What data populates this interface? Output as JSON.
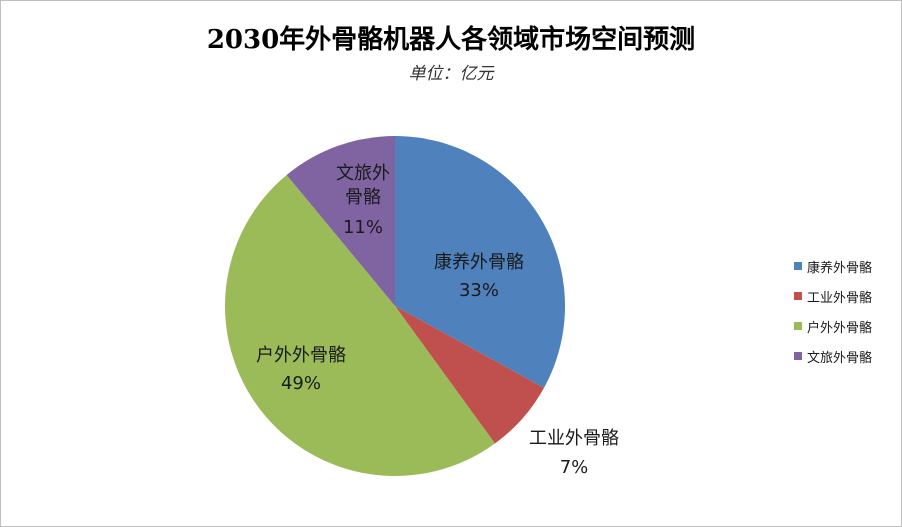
{
  "chart_data": {
    "type": "pie",
    "title": "2030年外骨骼机器人各领域市场空间预测",
    "subtitle": "单位：亿元",
    "slices": [
      {
        "name": "康养外骨骼",
        "value": 33,
        "label": "33%",
        "color": "#4f81bd"
      },
      {
        "name": "工业外骨骼",
        "value": 7,
        "label": "7%",
        "color": "#c0504d"
      },
      {
        "name": "户外外骨骼",
        "value": 49,
        "label": "49%",
        "color": "#9bbb59"
      },
      {
        "name": "文旅外骨骼",
        "value": 11,
        "label": "11%",
        "color": "#8064a2"
      }
    ],
    "legend_placement": "right"
  }
}
